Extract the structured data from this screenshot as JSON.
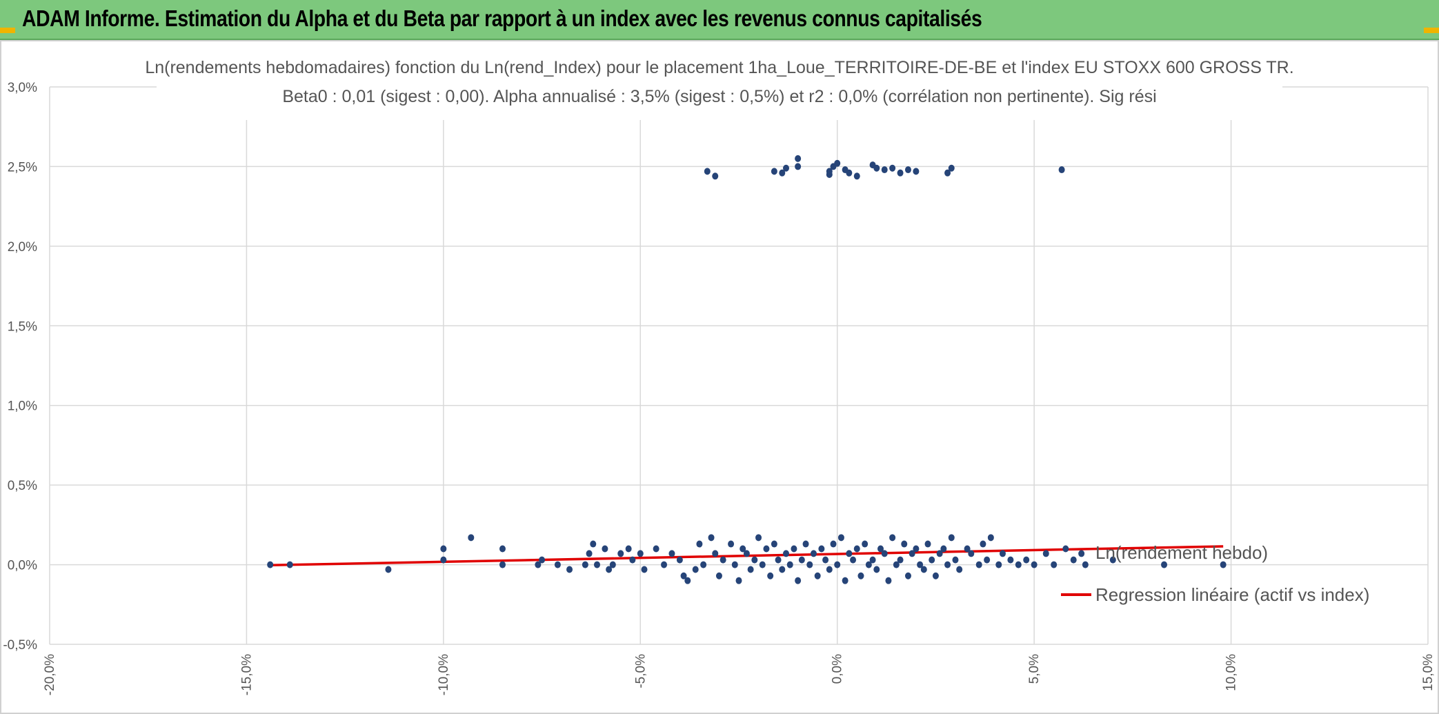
{
  "header": {
    "title": "ADAM Informe. Estimation du Alpha et du Beta par rapport à un index avec les revenus connus capitalisés"
  },
  "colors": {
    "header_bg": "#7dc87d",
    "points": "#264478",
    "regression": "#e00000",
    "grid": "#d9d9d9"
  },
  "chart_data": {
    "type": "scatter",
    "title_line1": "Ln(rendements hebdomadaires) fonction du Ln(rend_Index) pour le placement 1ha_Loue_TERRITOIRE-DE-BE et l'index EU STOXX 600 GROSS TR.",
    "title_line2": "Beta0 : 0,01 (sigest : 0,00). Alpha annualisé : 3,5% (sigest : 0,5%) et r2 : 0,0% (corrélation non pertinente). Sig rési",
    "xlim": [
      -20,
      15
    ],
    "ylim": [
      -0.5,
      3.0
    ],
    "x_ticks": [
      "-20,0%",
      "-15,0%",
      "-10,0%",
      "-5,0%",
      "0,0%",
      "5,0%",
      "10,0%",
      "15,0%"
    ],
    "y_ticks": [
      "3,0%",
      "2,5%",
      "2,0%",
      "1,5%",
      "1,0%",
      "0,5%",
      "0,0%",
      "-0,5%"
    ],
    "grid": true,
    "legend_position": "right",
    "series": [
      {
        "name": "Ln(rendement hebdo)",
        "kind": "points",
        "points": [
          [
            -14.4,
            0.0
          ],
          [
            -13.9,
            0.0
          ],
          [
            -11.4,
            -0.03
          ],
          [
            -10.0,
            0.1
          ],
          [
            -10.0,
            0.03
          ],
          [
            -9.3,
            0.17
          ],
          [
            -8.5,
            0.1
          ],
          [
            -8.5,
            0.0
          ],
          [
            -7.5,
            0.03
          ],
          [
            -7.6,
            0.0
          ],
          [
            -7.1,
            0.0
          ],
          [
            -6.8,
            -0.03
          ],
          [
            -6.4,
            0.0
          ],
          [
            -6.3,
            0.07
          ],
          [
            -6.2,
            0.13
          ],
          [
            -6.1,
            0.0
          ],
          [
            -5.9,
            0.1
          ],
          [
            -5.8,
            -0.03
          ],
          [
            -5.7,
            0.0
          ],
          [
            -5.5,
            0.07
          ],
          [
            -5.3,
            0.1
          ],
          [
            -5.2,
            0.03
          ],
          [
            -5.0,
            0.07
          ],
          [
            -4.9,
            -0.03
          ],
          [
            -4.6,
            0.1
          ],
          [
            -4.4,
            0.0
          ],
          [
            -4.2,
            0.07
          ],
          [
            -4.0,
            0.03
          ],
          [
            -3.9,
            -0.07
          ],
          [
            -3.8,
            -0.1
          ],
          [
            -3.6,
            -0.03
          ],
          [
            -3.5,
            0.13
          ],
          [
            -3.4,
            0.0
          ],
          [
            -3.2,
            0.17
          ],
          [
            -3.1,
            0.07
          ],
          [
            -3.0,
            -0.07
          ],
          [
            -2.9,
            0.03
          ],
          [
            -2.7,
            0.13
          ],
          [
            -2.6,
            0.0
          ],
          [
            -2.5,
            -0.1
          ],
          [
            -2.4,
            0.1
          ],
          [
            -2.3,
            0.07
          ],
          [
            -2.2,
            -0.03
          ],
          [
            -2.1,
            0.03
          ],
          [
            -2.0,
            0.17
          ],
          [
            -1.9,
            0.0
          ],
          [
            -1.8,
            0.1
          ],
          [
            -1.7,
            -0.07
          ],
          [
            -1.6,
            0.13
          ],
          [
            -1.5,
            0.03
          ],
          [
            -1.4,
            -0.03
          ],
          [
            -1.3,
            0.07
          ],
          [
            -1.2,
            0.0
          ],
          [
            -1.1,
            0.1
          ],
          [
            -1.0,
            -0.1
          ],
          [
            -0.9,
            0.03
          ],
          [
            -0.8,
            0.13
          ],
          [
            -0.7,
            0.0
          ],
          [
            -0.6,
            0.07
          ],
          [
            -0.5,
            -0.07
          ],
          [
            -0.4,
            0.1
          ],
          [
            -0.3,
            0.03
          ],
          [
            -0.2,
            -0.03
          ],
          [
            -0.1,
            0.13
          ],
          [
            0.0,
            0.0
          ],
          [
            0.1,
            0.17
          ],
          [
            0.2,
            -0.1
          ],
          [
            0.3,
            0.07
          ],
          [
            0.4,
            0.03
          ],
          [
            0.5,
            0.1
          ],
          [
            0.6,
            -0.07
          ],
          [
            0.7,
            0.13
          ],
          [
            0.8,
            0.0
          ],
          [
            0.9,
            0.03
          ],
          [
            1.0,
            -0.03
          ],
          [
            1.1,
            0.1
          ],
          [
            1.2,
            0.07
          ],
          [
            1.3,
            -0.1
          ],
          [
            1.4,
            0.17
          ],
          [
            1.5,
            0.0
          ],
          [
            1.6,
            0.03
          ],
          [
            1.7,
            0.13
          ],
          [
            1.8,
            -0.07
          ],
          [
            1.9,
            0.07
          ],
          [
            2.0,
            0.1
          ],
          [
            2.1,
            0.0
          ],
          [
            2.2,
            -0.03
          ],
          [
            2.3,
            0.13
          ],
          [
            2.4,
            0.03
          ],
          [
            2.5,
            -0.07
          ],
          [
            2.6,
            0.07
          ],
          [
            2.7,
            0.1
          ],
          [
            2.8,
            0.0
          ],
          [
            2.9,
            0.17
          ],
          [
            3.0,
            0.03
          ],
          [
            3.1,
            -0.03
          ],
          [
            3.3,
            0.1
          ],
          [
            3.4,
            0.07
          ],
          [
            3.6,
            0.0
          ],
          [
            3.7,
            0.13
          ],
          [
            3.8,
            0.03
          ],
          [
            3.9,
            0.17
          ],
          [
            4.1,
            0.0
          ],
          [
            4.2,
            0.07
          ],
          [
            4.4,
            0.03
          ],
          [
            4.6,
            0.0
          ],
          [
            4.8,
            0.03
          ],
          [
            5.0,
            0.0
          ],
          [
            5.3,
            0.07
          ],
          [
            5.5,
            0.0
          ],
          [
            5.8,
            0.1
          ],
          [
            6.0,
            0.03
          ],
          [
            6.2,
            0.07
          ],
          [
            6.3,
            0.0
          ],
          [
            7.0,
            0.03
          ],
          [
            8.3,
            0.0
          ],
          [
            9.8,
            0.0
          ],
          [
            -3.3,
            2.47
          ],
          [
            -3.1,
            2.44
          ],
          [
            -1.6,
            2.47
          ],
          [
            -1.4,
            2.46
          ],
          [
            -1.3,
            2.49
          ],
          [
            -1.0,
            2.55
          ],
          [
            -1.0,
            2.5
          ],
          [
            -0.2,
            2.47
          ],
          [
            -0.2,
            2.45
          ],
          [
            -0.1,
            2.5
          ],
          [
            0.0,
            2.52
          ],
          [
            0.2,
            2.48
          ],
          [
            0.3,
            2.46
          ],
          [
            0.5,
            2.44
          ],
          [
            0.9,
            2.51
          ],
          [
            1.0,
            2.49
          ],
          [
            1.2,
            2.48
          ],
          [
            1.4,
            2.49
          ],
          [
            1.6,
            2.46
          ],
          [
            1.8,
            2.48
          ],
          [
            2.0,
            2.47
          ],
          [
            2.8,
            2.46
          ],
          [
            2.9,
            2.49
          ],
          [
            5.7,
            2.48
          ]
        ]
      },
      {
        "name": "Regression linéaire (actif vs index)",
        "kind": "line",
        "x": [
          -14.4,
          9.8
        ],
        "y": [
          -0.003,
          0.115
        ]
      }
    ]
  }
}
